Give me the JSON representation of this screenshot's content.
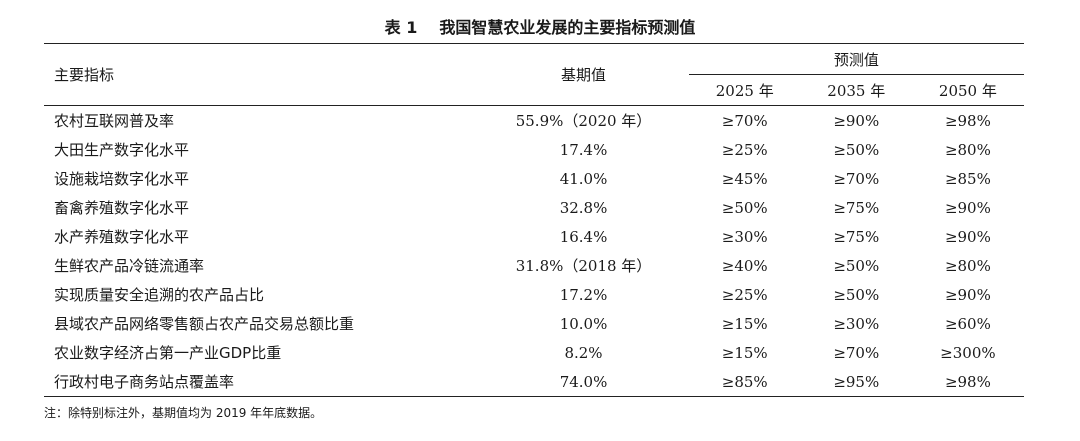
{
  "caption": {
    "number": "表 1",
    "title": "我国智慧农业发展的主要指标预测值"
  },
  "header": {
    "indicator": "主要指标",
    "base": "基期值",
    "forecast": "预测值",
    "years": [
      "2025 年",
      "2035 年",
      "2050 年"
    ]
  },
  "rows": [
    {
      "indicator": "农村互联网普及率",
      "base": "55.9%（2020 年）",
      "v2025": "≥70%",
      "v2035": "≥90%",
      "v2050": "≥98%"
    },
    {
      "indicator": "大田生产数字化水平",
      "base": "17.4%",
      "v2025": "≥25%",
      "v2035": "≥50%",
      "v2050": "≥80%"
    },
    {
      "indicator": "设施栽培数字化水平",
      "base": "41.0%",
      "v2025": "≥45%",
      "v2035": "≥70%",
      "v2050": "≥85%"
    },
    {
      "indicator": "畜禽养殖数字化水平",
      "base": "32.8%",
      "v2025": "≥50%",
      "v2035": "≥75%",
      "v2050": "≥90%"
    },
    {
      "indicator": "水产养殖数字化水平",
      "base": "16.4%",
      "v2025": "≥30%",
      "v2035": "≥75%",
      "v2050": "≥90%"
    },
    {
      "indicator": "生鲜农产品冷链流通率",
      "base": "31.8%（2018 年）",
      "v2025": "≥40%",
      "v2035": "≥50%",
      "v2050": "≥80%"
    },
    {
      "indicator": "实现质量安全追溯的农产品占比",
      "base": "17.2%",
      "v2025": "≥25%",
      "v2035": "≥50%",
      "v2050": "≥90%"
    },
    {
      "indicator": "县域农产品网络零售额占农产品交易总额比重",
      "base": "10.0%",
      "v2025": "≥15%",
      "v2035": "≥30%",
      "v2050": "≥60%"
    },
    {
      "indicator": "农业数字经济占第一产业GDP比重",
      "base": "8.2%",
      "v2025": "≥15%",
      "v2035": "≥70%",
      "v2050": "≥300%"
    },
    {
      "indicator": "行政村电子商务站点覆盖率",
      "base": "74.0%",
      "v2025": "≥85%",
      "v2035": "≥95%",
      "v2050": "≥98%"
    }
  ],
  "note": "注：除特别标注外，基期值均为 2019 年年底数据。"
}
